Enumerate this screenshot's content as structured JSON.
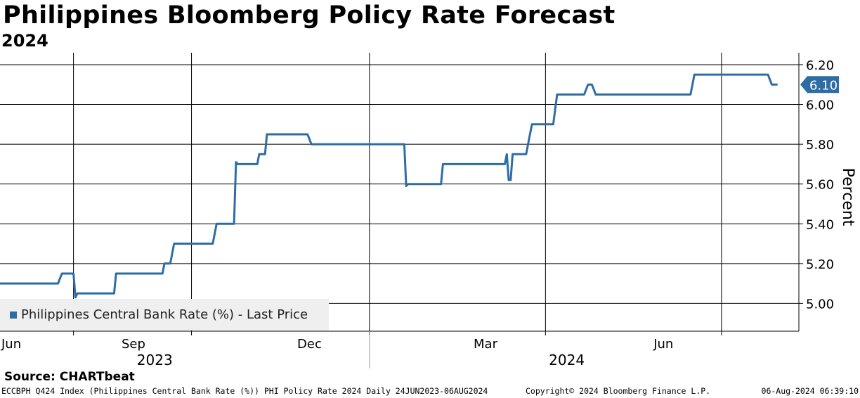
{
  "header": {
    "title": "Philippines Bloomberg Policy Rate Forecast",
    "subtitle": "2024"
  },
  "legend": {
    "label": "Philippines Central Bank Rate (%) - Last Price"
  },
  "source": "Source: CHARTbeat",
  "footer": {
    "left": "ECCBPH Q424 Index (Philippines Central Bank Rate (%)) PHI Policy Rate 2024  Daily 24JUN2023-06AUG2024",
    "mid": "Copyright© 2024 Bloomberg Finance L.P.",
    "right": "06-Aug-2024 06:39:10"
  },
  "colors": {
    "series": "#2e6da4",
    "grid": "#000000"
  },
  "chart_data": {
    "type": "line",
    "ylabel": "Percent",
    "ylim": [
      4.86,
      6.26
    ],
    "xlim": [
      "2023-06-24",
      "2024-08-10"
    ],
    "yticks": [
      "6.20",
      "6.00",
      "5.80",
      "5.60",
      "5.40",
      "5.20",
      "5.00"
    ],
    "xticks": [
      {
        "date": "2023-06-24",
        "label": "Jun"
      },
      {
        "date": "2023-09-01",
        "label": "Sep"
      },
      {
        "date": "2023-12-01",
        "label": "Dec"
      },
      {
        "date": "2024-03-01",
        "label": "Mar"
      },
      {
        "date": "2024-06-01",
        "label": "Jun"
      }
    ],
    "year_labels": [
      {
        "date": "2023-09-12",
        "label": "2023"
      },
      {
        "date": "2024-04-12",
        "label": "2024"
      }
    ],
    "year_divider": "2024-01-01",
    "last_value_label": "6.10",
    "legend_position": "bottom-left",
    "grid": true,
    "series": [
      {
        "name": "Philippines Central Bank Rate (%) - Last Price",
        "points": [
          [
            "2023-06-24",
            5.1
          ],
          [
            "2023-07-24",
            5.1
          ],
          [
            "2023-07-26",
            5.15
          ],
          [
            "2023-08-01",
            5.15
          ],
          [
            "2023-08-02",
            5.03
          ],
          [
            "2023-08-03",
            5.05
          ],
          [
            "2023-08-22",
            5.05
          ],
          [
            "2023-08-23",
            5.15
          ],
          [
            "2023-09-06",
            5.15
          ],
          [
            "2023-09-16",
            5.15
          ],
          [
            "2023-09-17",
            5.2
          ],
          [
            "2023-09-20",
            5.2
          ],
          [
            "2023-09-22",
            5.3
          ],
          [
            "2023-10-12",
            5.3
          ],
          [
            "2023-10-14",
            5.4
          ],
          [
            "2023-10-23",
            5.4
          ],
          [
            "2023-10-24",
            5.71
          ],
          [
            "2023-10-25",
            5.7
          ],
          [
            "2023-11-04",
            5.7
          ],
          [
            "2023-11-05",
            5.75
          ],
          [
            "2023-11-08",
            5.75
          ],
          [
            "2023-11-09",
            5.85
          ],
          [
            "2023-11-30",
            5.85
          ],
          [
            "2023-12-02",
            5.8
          ],
          [
            "2024-01-19",
            5.8
          ],
          [
            "2024-01-20",
            5.59
          ],
          [
            "2024-01-21",
            5.6
          ],
          [
            "2024-02-07",
            5.6
          ],
          [
            "2024-02-08",
            5.7
          ],
          [
            "2024-03-11",
            5.7
          ],
          [
            "2024-03-12",
            5.75
          ],
          [
            "2024-03-13",
            5.62
          ],
          [
            "2024-03-14",
            5.62
          ],
          [
            "2024-03-15",
            5.75
          ],
          [
            "2024-03-22",
            5.75
          ],
          [
            "2024-03-24",
            5.85
          ],
          [
            "2024-03-25",
            5.9
          ],
          [
            "2024-04-05",
            5.9
          ],
          [
            "2024-04-07",
            6.05
          ],
          [
            "2024-04-21",
            6.05
          ],
          [
            "2024-04-23",
            6.1
          ],
          [
            "2024-04-25",
            6.1
          ],
          [
            "2024-04-27",
            6.05
          ],
          [
            "2024-06-15",
            6.05
          ],
          [
            "2024-06-17",
            6.15
          ],
          [
            "2024-07-25",
            6.15
          ],
          [
            "2024-07-27",
            6.1
          ],
          [
            "2024-07-30",
            6.1
          ]
        ]
      }
    ]
  }
}
